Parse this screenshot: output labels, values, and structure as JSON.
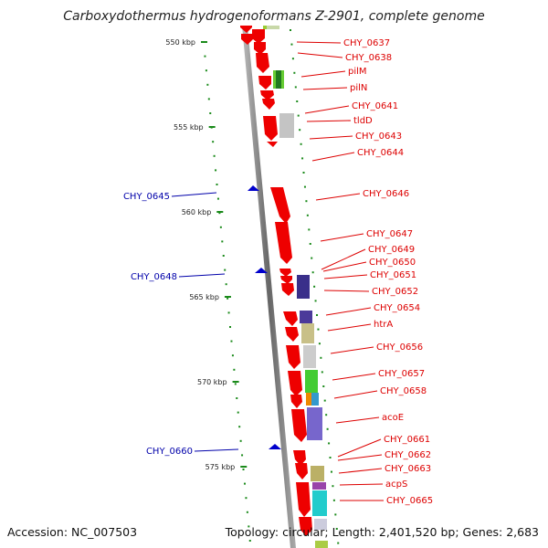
{
  "title": "Carboxydothermus hydrogenoformans Z-2901, complete genome",
  "accession": "Accession: NC_007503",
  "topology": "Topology: circular; Length: 2,401,520 bp; Genes: 2,683",
  "ticks": [
    "550 kbp",
    "555 kbp",
    "560 kbp",
    "565 kbp",
    "570 kbp",
    "575 kbp"
  ],
  "genes_right": [
    "CHY_0637",
    "CHY_0638",
    "pilM",
    "pilN",
    "CHY_0641",
    "tldD",
    "CHY_0643",
    "CHY_0644",
    "CHY_0646",
    "CHY_0647",
    "CHY_0649",
    "CHY_0650",
    "CHY_0651",
    "CHY_0652",
    "CHY_0654",
    "htrA",
    "CHY_0656",
    "CHY_0657",
    "CHY_0658",
    "acoE",
    "CHY_0661",
    "CHY_0662",
    "CHY_0663",
    "acpS",
    "CHY_0665"
  ],
  "genes_left": [
    "CHY_0645",
    "CHY_0648",
    "CHY_0660"
  ],
  "colors": {
    "forward_gene": "#ee0000",
    "reverse_marker": "#0000cc",
    "backbone": "#888888",
    "tick": "#1a8a1a",
    "label_right": "#dd0000",
    "label_left": "#0000aa"
  }
}
